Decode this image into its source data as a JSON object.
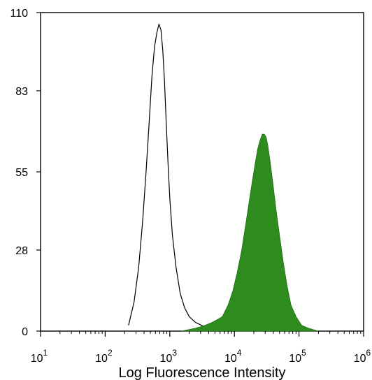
{
  "chart_data": {
    "type": "area",
    "title": "",
    "xlabel": "Log Fluorescence Intensity",
    "ylabel": "",
    "x_scale": "log",
    "xlim": [
      10,
      1000000
    ],
    "ylim": [
      0,
      110
    ],
    "x_ticks": [
      {
        "value": 10,
        "base": "10",
        "exp": "1"
      },
      {
        "value": 100,
        "base": "10",
        "exp": "2"
      },
      {
        "value": 1000,
        "base": "10",
        "exp": "3"
      },
      {
        "value": 10000,
        "base": "10",
        "exp": "4"
      },
      {
        "value": 100000,
        "base": "10",
        "exp": "5"
      },
      {
        "value": 1000000,
        "base": "10",
        "exp": "6"
      }
    ],
    "y_ticks": [
      "0",
      "28",
      "55",
      "83",
      "110"
    ],
    "grid": false,
    "legend": "none",
    "series": [
      {
        "style": "outline",
        "color": "#000000",
        "x": [
          230,
          280,
          330,
          380,
          430,
          480,
          530,
          580,
          630,
          680,
          730,
          780,
          830,
          880,
          940,
          1000,
          1100,
          1250,
          1450,
          1700,
          2000,
          2500,
          3100,
          3800,
          4600,
          5500
        ],
        "y": [
          2,
          10,
          22,
          38,
          55,
          72,
          88,
          98,
          103,
          106,
          104,
          97,
          86,
          72,
          58,
          46,
          33,
          22,
          13,
          8,
          5,
          3,
          2,
          1,
          1,
          0
        ]
      },
      {
        "style": "filled",
        "color": "#2e8b1e",
        "x": [
          1500,
          2500,
          3500,
          4500,
          5500,
          6500,
          8000,
          9500,
          11000,
          13000,
          15000,
          17000,
          19000,
          21000,
          23000,
          25000,
          27000,
          29000,
          31000,
          33000,
          36000,
          40000,
          44000,
          50000,
          57000,
          65000,
          75000,
          90000,
          110000,
          140000,
          200000
        ],
        "y": [
          0,
          1,
          2,
          3,
          4,
          5,
          9,
          14,
          20,
          28,
          37,
          45,
          52,
          58,
          63,
          66,
          68,
          68,
          67,
          64,
          58,
          50,
          42,
          33,
          24,
          16,
          9,
          5,
          2,
          1,
          0
        ]
      }
    ]
  }
}
